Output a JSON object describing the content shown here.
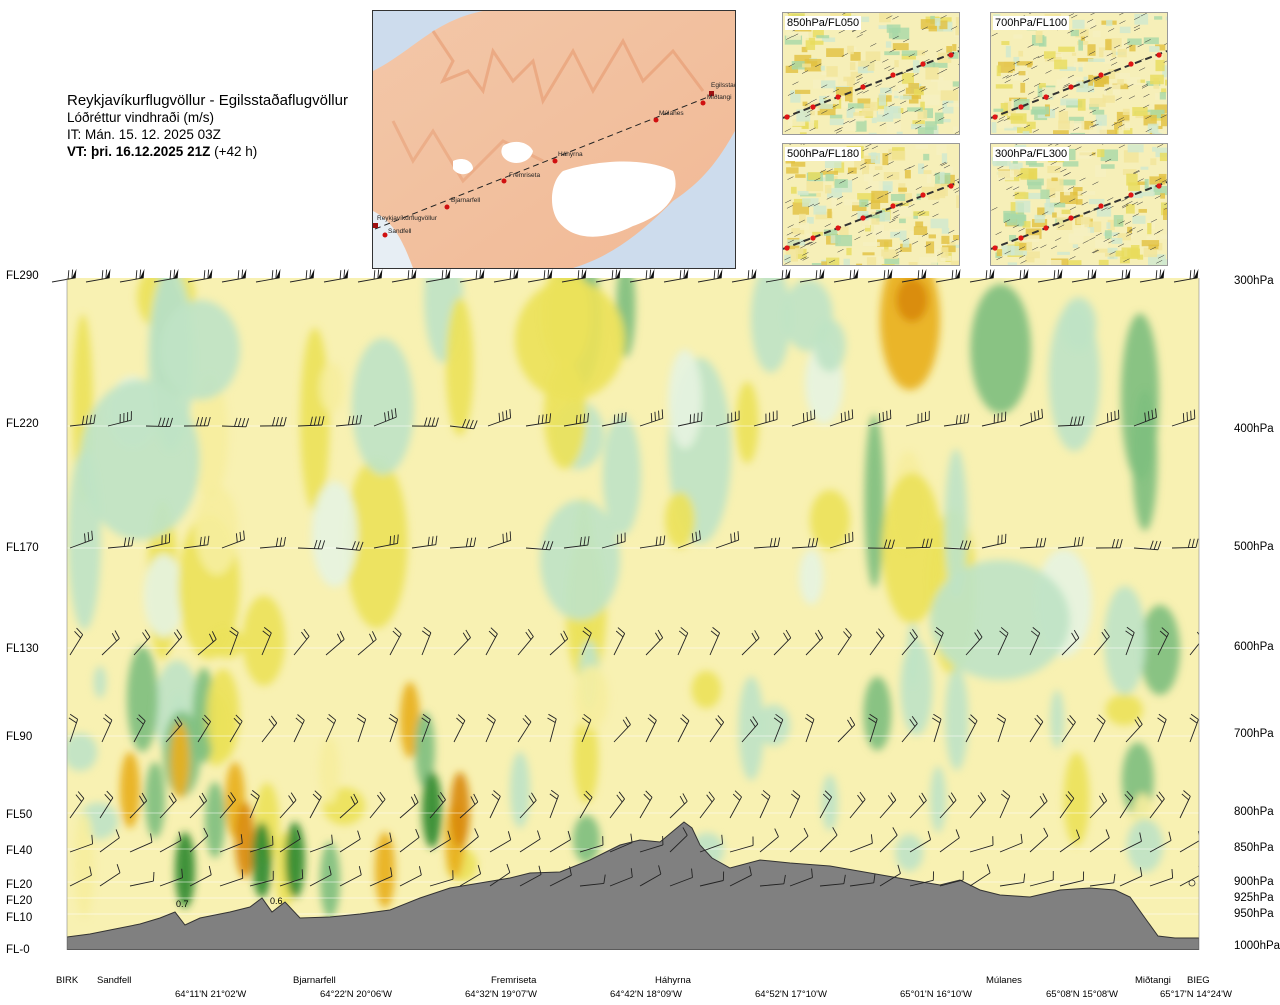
{
  "header": {
    "route": "Reykjavíkurflugvöllur - Egilsstaðaflugvöllur",
    "parameter": "Lóðréttur vindhraði (m/s)",
    "issue_time": "IT: Mán. 15. 12. 2025 03Z",
    "valid_time": "VT: þri. 16.12.2025 21Z",
    "lead": "(+42 h)"
  },
  "map": {
    "labels": [
      "Egilsstaðir",
      "Miðtangi",
      "Múlanes",
      "Háhyrna",
      "Fremriseta",
      "Bjarnarfell",
      "Reykjavíkurflugvöllur",
      "Sandfell"
    ]
  },
  "minimaps": [
    {
      "label": "850hPa/FL050"
    },
    {
      "label": "700hPa/FL100"
    },
    {
      "label": "500hPa/FL180"
    },
    {
      "label": "300hPa/FL300"
    }
  ],
  "chart_data": {
    "type": "heatmap",
    "title": "Lóðréttur vindhraði (m/s)",
    "left_axis_labels": [
      "FL290",
      "FL220",
      "FL170",
      "FL130",
      "FL90",
      "FL50",
      "FL40",
      "FL20",
      "FL20",
      "FL10",
      "FL-0"
    ],
    "right_axis_labels": [
      "300hPa",
      "400hPa",
      "500hPa",
      "600hPa",
      "700hPa",
      "800hPa",
      "850hPa",
      "900hPa",
      "925hPa",
      "950hPa",
      "1000hPa"
    ],
    "pressure_levels_hpa": [
      300,
      400,
      500,
      600,
      700,
      800,
      850,
      900,
      925,
      950,
      1000
    ],
    "waypoints": [
      "BIRK",
      "Sandfell",
      "Bjarnarfell",
      "Fremriseta",
      "Háhyrna",
      "Múlanes",
      "Miðtangi",
      "BIEG"
    ],
    "coordinates": [
      "64°11'N 21°02'W",
      "64°22'N 20°06'W",
      "64°32'N 19°07'W",
      "64°42'N 18°09'W",
      "64°52'N 17°10'W",
      "65°01'N 16°10'W",
      "65°08'N 15°08'W",
      "65°17'N 14°24'W"
    ],
    "annotations": [
      "0.7",
      "0.6"
    ],
    "colors": {
      "strong_down": "#2f8a2f",
      "down": "#7fbf7f",
      "weak_down": "#bfe3c6",
      "near_zero_down": "#e6f3e1",
      "near_zero_up": "#fbf6c7",
      "weak_up": "#f6ee9e",
      "up": "#ece25a",
      "strong_up": "#e8b020",
      "very_strong_up": "#d98a10",
      "terrain": "#808080"
    }
  }
}
